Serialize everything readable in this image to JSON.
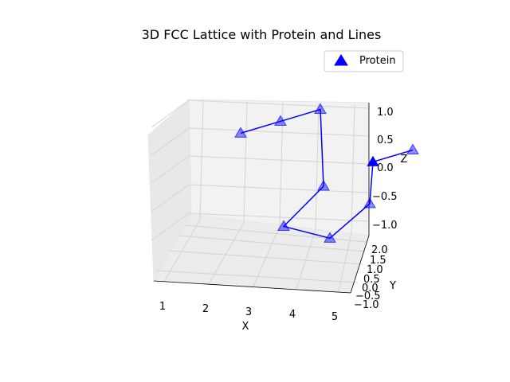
{
  "chart_data": {
    "type": "scatter3d",
    "title": "3D FCC Lattice with Protein and Lines",
    "xlabel": "X",
    "ylabel": "Y",
    "zlabel": "Z",
    "x_ticks": [
      "1",
      "2",
      "3",
      "4",
      "5"
    ],
    "y_ticks": [
      "2.0",
      "1.5",
      "1.0",
      "0.5",
      "0.0",
      "−0.5",
      "−1.0"
    ],
    "z_ticks": [
      "1.0",
      "0.5",
      "0.0",
      "−0.5",
      "−1.0"
    ],
    "legend": {
      "position": "top-right",
      "entries": [
        "Protein"
      ]
    },
    "marker": "triangle",
    "color": "#0000ff",
    "grid": true,
    "series": [
      {
        "name": "Protein",
        "points": [
          {
            "x": 1.0,
            "y": 0.0,
            "z": 0.6
          },
          {
            "x": 2.0,
            "y": 0.5,
            "z": 0.8
          },
          {
            "x": 3.0,
            "y": 1.0,
            "z": 1.0
          },
          {
            "x": 3.0,
            "y": 0.5,
            "z": -0.3
          },
          {
            "x": 2.0,
            "y": 0.0,
            "z": -1.0
          },
          {
            "x": 3.0,
            "y": -0.5,
            "z": -1.1
          },
          {
            "x": 4.0,
            "y": 0.0,
            "z": -0.5
          },
          {
            "x": 4.0,
            "y": -0.5,
            "z": 0.3
          },
          {
            "x": 5.0,
            "y": 0.0,
            "z": 0.5
          }
        ]
      }
    ]
  }
}
